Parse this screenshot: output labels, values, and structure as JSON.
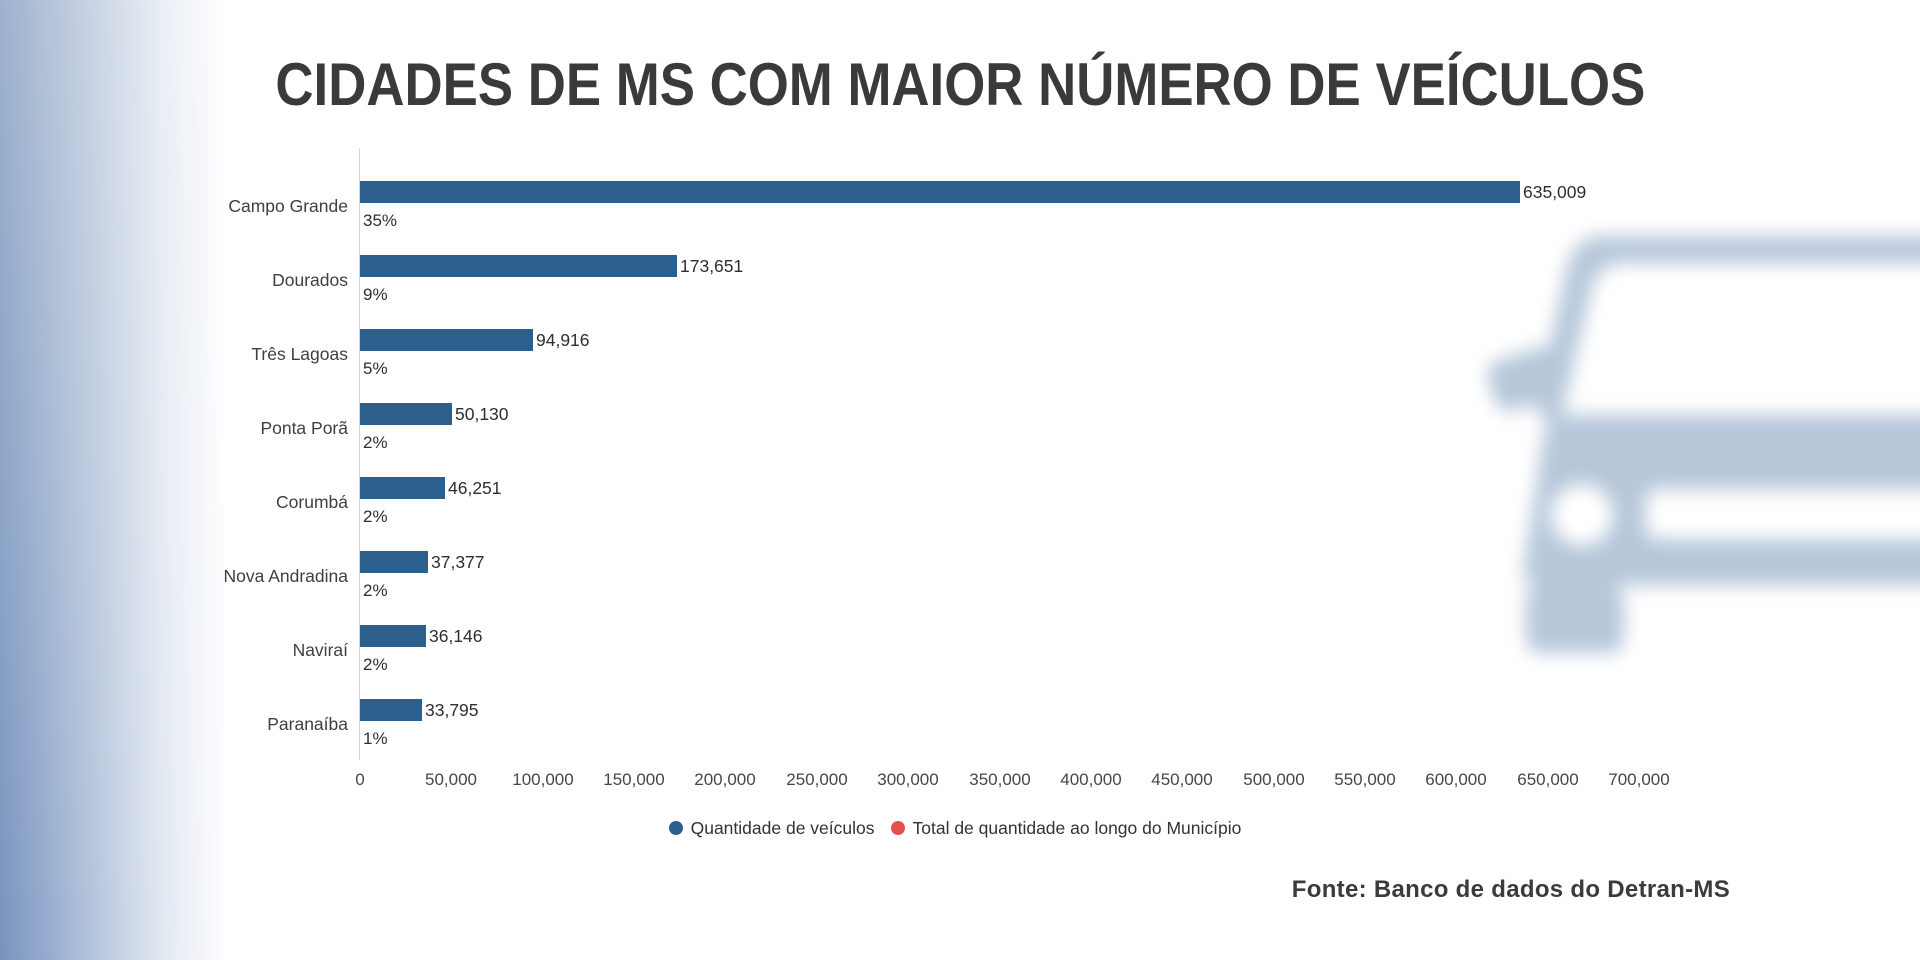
{
  "title": "CIDADES DE MS COM MAIOR NÚMERO DE VEÍCULOS",
  "source": "Fonte: Banco de dados do Detran-MS",
  "colors": {
    "bar_blue": "#2d5f8c",
    "legend_red": "#e2514f",
    "watermark_blue": "#b6c7da",
    "gradient_blue_top": "#9db1cd",
    "gradient_blue_bottom": "#7793bf"
  },
  "watermark": {
    "icon": "car-front",
    "color": "#b6c7da"
  },
  "chart_data": {
    "type": "bar",
    "orientation": "horizontal",
    "title": "CIDADES DE MS COM MAIOR NÚMERO DE VEÍCULOS",
    "categories": [
      "Campo Grande",
      "Dourados",
      "Três Lagoas",
      "Ponta Porã",
      "Corumbá",
      "Nova Andradina",
      "Naviraí",
      "Paranaíba"
    ],
    "series": [
      {
        "name": "Quantidade de veículos",
        "color": "#2d5f8c",
        "values": [
          635009,
          173651,
          94916,
          50130,
          46251,
          37377,
          36146,
          33795
        ]
      }
    ],
    "value_labels": [
      "635,009",
      "173,651",
      "94,916",
      "50,130",
      "46,251",
      "37,377",
      "36,146",
      "33,795"
    ],
    "percent_labels": [
      "35%",
      "9%",
      "5%",
      "2%",
      "2%",
      "2%",
      "2%",
      "1%"
    ],
    "xlim": [
      0,
      700000
    ],
    "x_tick_labels": [
      "0",
      "50,000",
      "100,000",
      "150,000",
      "200,000",
      "250,000",
      "300,000",
      "350,000",
      "400,000",
      "450,000",
      "500,000",
      "550,000",
      "600,000",
      "650,000",
      "700,000"
    ],
    "grid": false,
    "legend_position": "bottom",
    "legend": [
      {
        "label": "Quantidade de veículos",
        "color": "#2d5f8c"
      },
      {
        "label": "Total de quantidade ao longo do Município",
        "color": "#e2514f"
      }
    ]
  }
}
